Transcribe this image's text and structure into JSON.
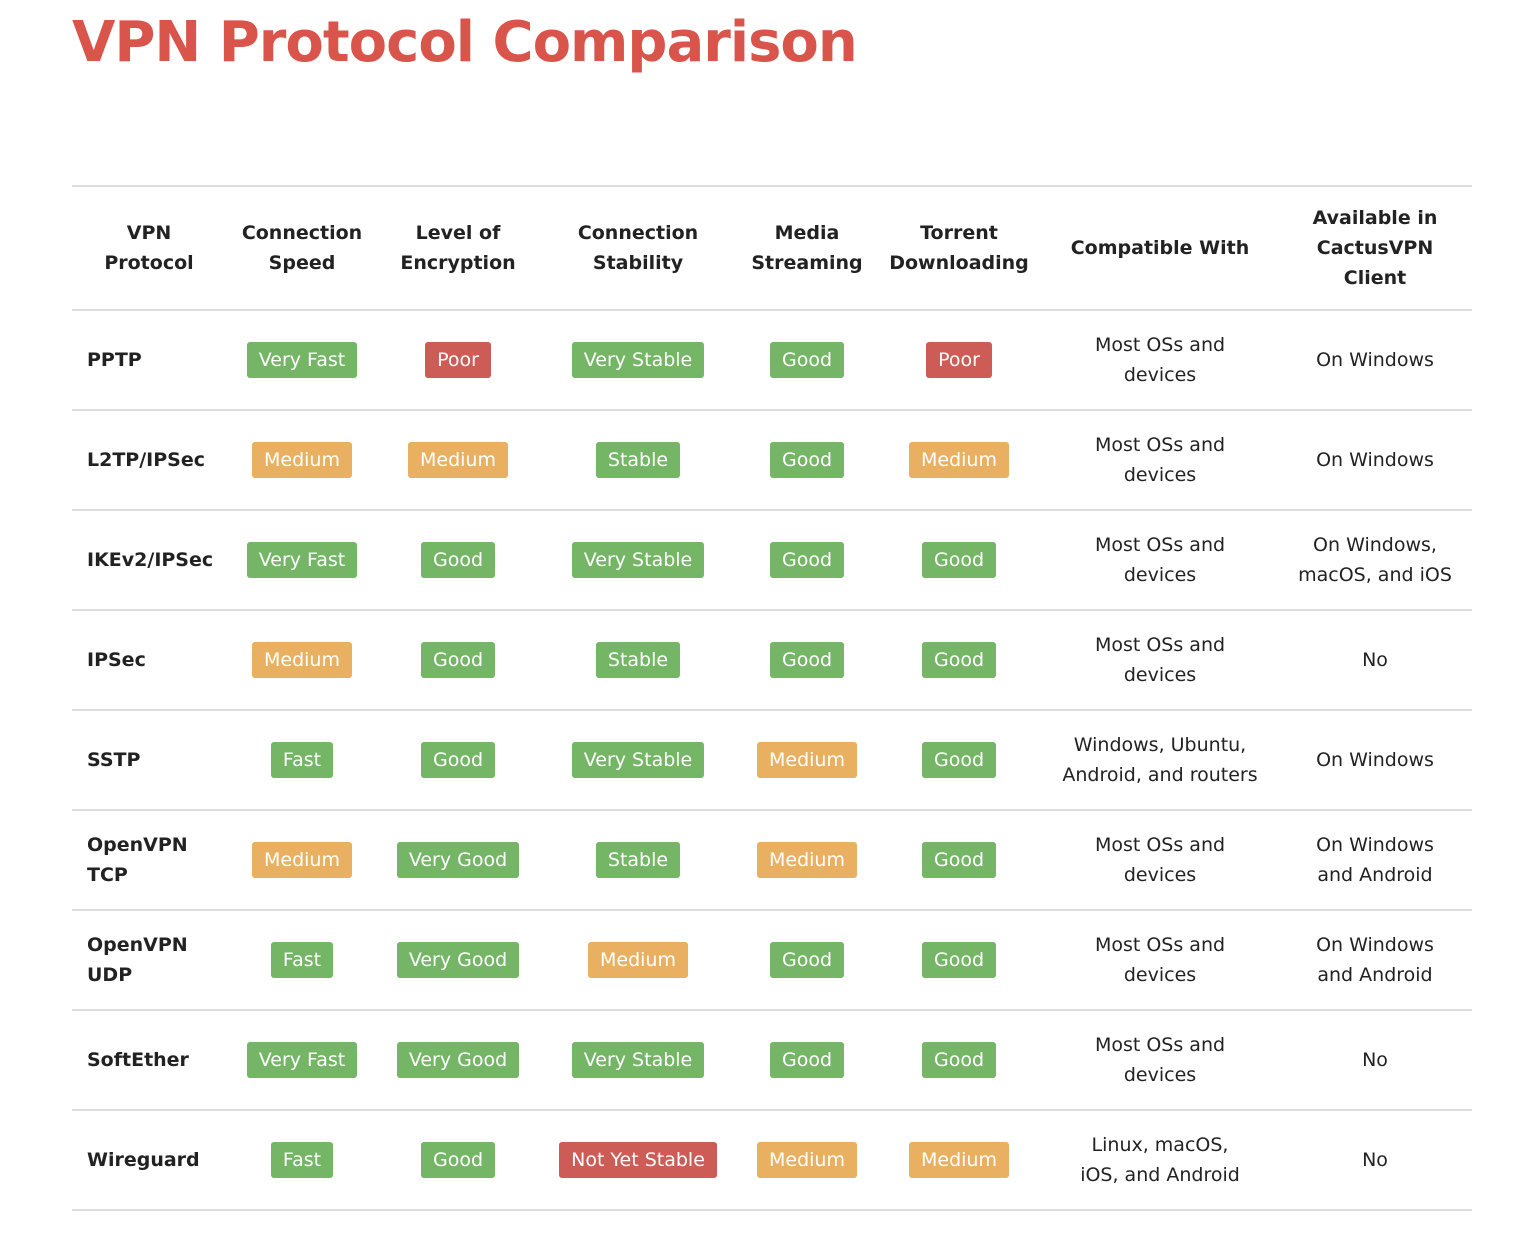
{
  "title": "VPN Protocol Comparison",
  "colors": {
    "good": "#74b566",
    "poor": "#cc5c55",
    "medium": "#e8b060",
    "title": "#d9544a"
  },
  "headers": [
    "VPN Protocol",
    "Connection Speed",
    "Level of Encryption",
    "Connection Stability",
    "Media Streaming",
    "Torrent Downloading",
    "Compatible With",
    "Available in CactusVPN Client"
  ],
  "rows": [
    {
      "protocol": "PPTP",
      "cells": [
        [
          "Very Fast",
          "good"
        ],
        [
          "Poor",
          "poor"
        ],
        [
          "Very Stable",
          "good"
        ],
        [
          "Good",
          "good"
        ],
        [
          "Poor",
          "poor"
        ]
      ],
      "compatible": "Most OSs and devices",
      "available": "On Windows"
    },
    {
      "protocol": "L2TP/IPSec",
      "cells": [
        [
          "Medium",
          "medium"
        ],
        [
          "Medium",
          "medium"
        ],
        [
          "Stable",
          "good"
        ],
        [
          "Good",
          "good"
        ],
        [
          "Medium",
          "medium"
        ]
      ],
      "compatible": "Most OSs and devices",
      "available": "On Windows"
    },
    {
      "protocol": "IKEv2/IPSec",
      "cells": [
        [
          "Very Fast",
          "good"
        ],
        [
          "Good",
          "good"
        ],
        [
          "Very Stable",
          "good"
        ],
        [
          "Good",
          "good"
        ],
        [
          "Good",
          "good"
        ]
      ],
      "compatible": "Most OSs and devices",
      "available": "On Windows, macOS, and iOS"
    },
    {
      "protocol": "IPSec",
      "cells": [
        [
          "Medium",
          "medium"
        ],
        [
          "Good",
          "good"
        ],
        [
          "Stable",
          "good"
        ],
        [
          "Good",
          "good"
        ],
        [
          "Good",
          "good"
        ]
      ],
      "compatible": "Most OSs and devices",
      "available": "No"
    },
    {
      "protocol": "SSTP",
      "cells": [
        [
          "Fast",
          "good"
        ],
        [
          "Good",
          "good"
        ],
        [
          "Very Stable",
          "good"
        ],
        [
          "Medium",
          "medium"
        ],
        [
          "Good",
          "good"
        ]
      ],
      "compatible": "Windows, Ubuntu, Android, and routers",
      "available": "On Windows"
    },
    {
      "protocol": "OpenVPN TCP",
      "cells": [
        [
          "Medium",
          "medium"
        ],
        [
          "Very Good",
          "good"
        ],
        [
          "Stable",
          "good"
        ],
        [
          "Medium",
          "medium"
        ],
        [
          "Good",
          "good"
        ]
      ],
      "compatible": "Most OSs and devices",
      "available": "On Windows and Android"
    },
    {
      "protocol": "OpenVPN UDP",
      "cells": [
        [
          "Fast",
          "good"
        ],
        [
          "Very Good",
          "good"
        ],
        [
          "Medium",
          "medium"
        ],
        [
          "Good",
          "good"
        ],
        [
          "Good",
          "good"
        ]
      ],
      "compatible": "Most OSs and devices",
      "available": "On Windows and Android"
    },
    {
      "protocol": "SoftEther",
      "cells": [
        [
          "Very Fast",
          "good"
        ],
        [
          "Very Good",
          "good"
        ],
        [
          "Very Stable",
          "good"
        ],
        [
          "Good",
          "good"
        ],
        [
          "Good",
          "good"
        ]
      ],
      "compatible": "Most OSs and devices",
      "available": "No"
    },
    {
      "protocol": "Wireguard",
      "cells": [
        [
          "Fast",
          "good"
        ],
        [
          "Good",
          "good"
        ],
        [
          "Not Yet Stable",
          "poor"
        ],
        [
          "Medium",
          "medium"
        ],
        [
          "Medium",
          "medium"
        ]
      ],
      "compatible": "Linux, macOS, iOS, and Android",
      "available": "No"
    }
  ]
}
